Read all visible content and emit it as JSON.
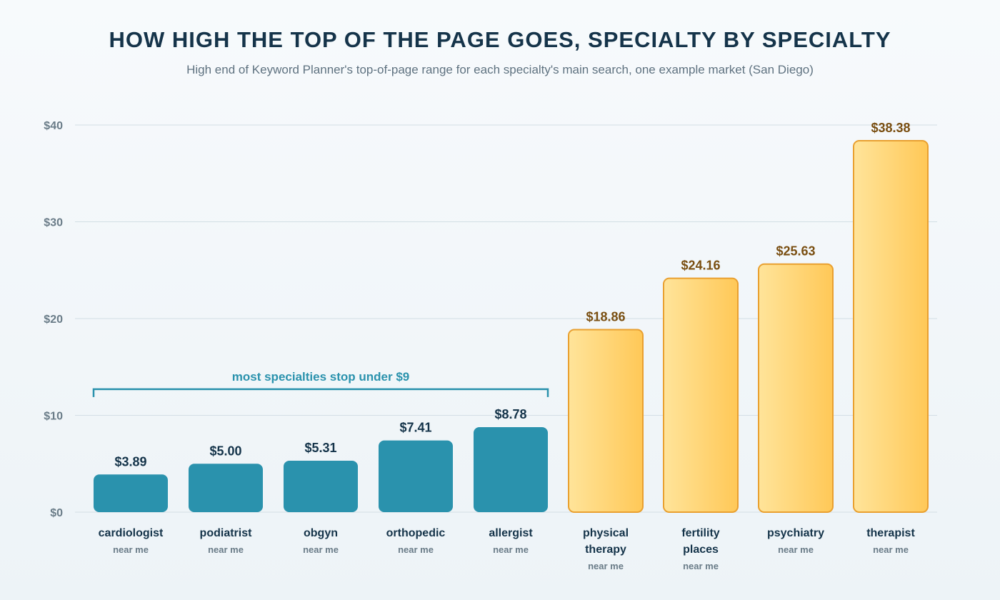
{
  "colors": {
    "background": "#f4f8fb",
    "title": "#15344a",
    "subtitle": "#5f7280",
    "grid": "#d3dee5",
    "axis_text": "#6a7c88",
    "low_bar": "#2a92ad",
    "low_label": "#15344a",
    "high_bar_light": "#ffe49a",
    "high_bar_dark": "#ffc857",
    "high_bar_border": "#e9a030",
    "high_label": "#7a4f12",
    "annotation": "#2a92ad"
  },
  "chart_data": {
    "type": "bar",
    "title": "HOW HIGH THE TOP OF THE PAGE GOES, SPECIALTY BY SPECIALTY",
    "subtitle": "High end of Keyword Planner's top-of-page range for each specialty's main search, one example market (San Diego)",
    "xlabel": "",
    "ylabel": "",
    "ylim": [
      0,
      40
    ],
    "yticks": [
      0,
      10,
      20,
      30,
      40
    ],
    "ytick_labels": [
      "$0",
      "$10",
      "$20",
      "$30",
      "$40"
    ],
    "grid": true,
    "legend": "none",
    "bars": [
      {
        "label": [
          "cardiologist"
        ],
        "sublabel": "near me",
        "value": 3.89,
        "value_label": "$3.89",
        "group": "low"
      },
      {
        "label": [
          "podiatrist"
        ],
        "sublabel": "near me",
        "value": 5.0,
        "value_label": "$5.00",
        "group": "low"
      },
      {
        "label": [
          "obgyn"
        ],
        "sublabel": "near me",
        "value": 5.31,
        "value_label": "$5.31",
        "group": "low"
      },
      {
        "label": [
          "orthopedic"
        ],
        "sublabel": "near me",
        "value": 7.41,
        "value_label": "$7.41",
        "group": "low"
      },
      {
        "label": [
          "allergist"
        ],
        "sublabel": "near me",
        "value": 8.78,
        "value_label": "$8.78",
        "group": "low"
      },
      {
        "label": [
          "physical",
          "therapy"
        ],
        "sublabel": "near me",
        "value": 18.86,
        "value_label": "$18.86",
        "group": "high"
      },
      {
        "label": [
          "fertility",
          "places"
        ],
        "sublabel": "near me",
        "value": 24.16,
        "value_label": "$24.16",
        "group": "high"
      },
      {
        "label": [
          "psychiatry"
        ],
        "sublabel": "near me",
        "value": 25.63,
        "value_label": "$25.63",
        "group": "high"
      },
      {
        "label": [
          "therapist"
        ],
        "sublabel": "near me",
        "value": 38.38,
        "value_label": "$38.38",
        "group": "high"
      }
    ],
    "annotations": [
      {
        "text": "most specialties stop under $9",
        "from_index": 0,
        "to_index": 4,
        "at_value": 12.7
      }
    ]
  }
}
